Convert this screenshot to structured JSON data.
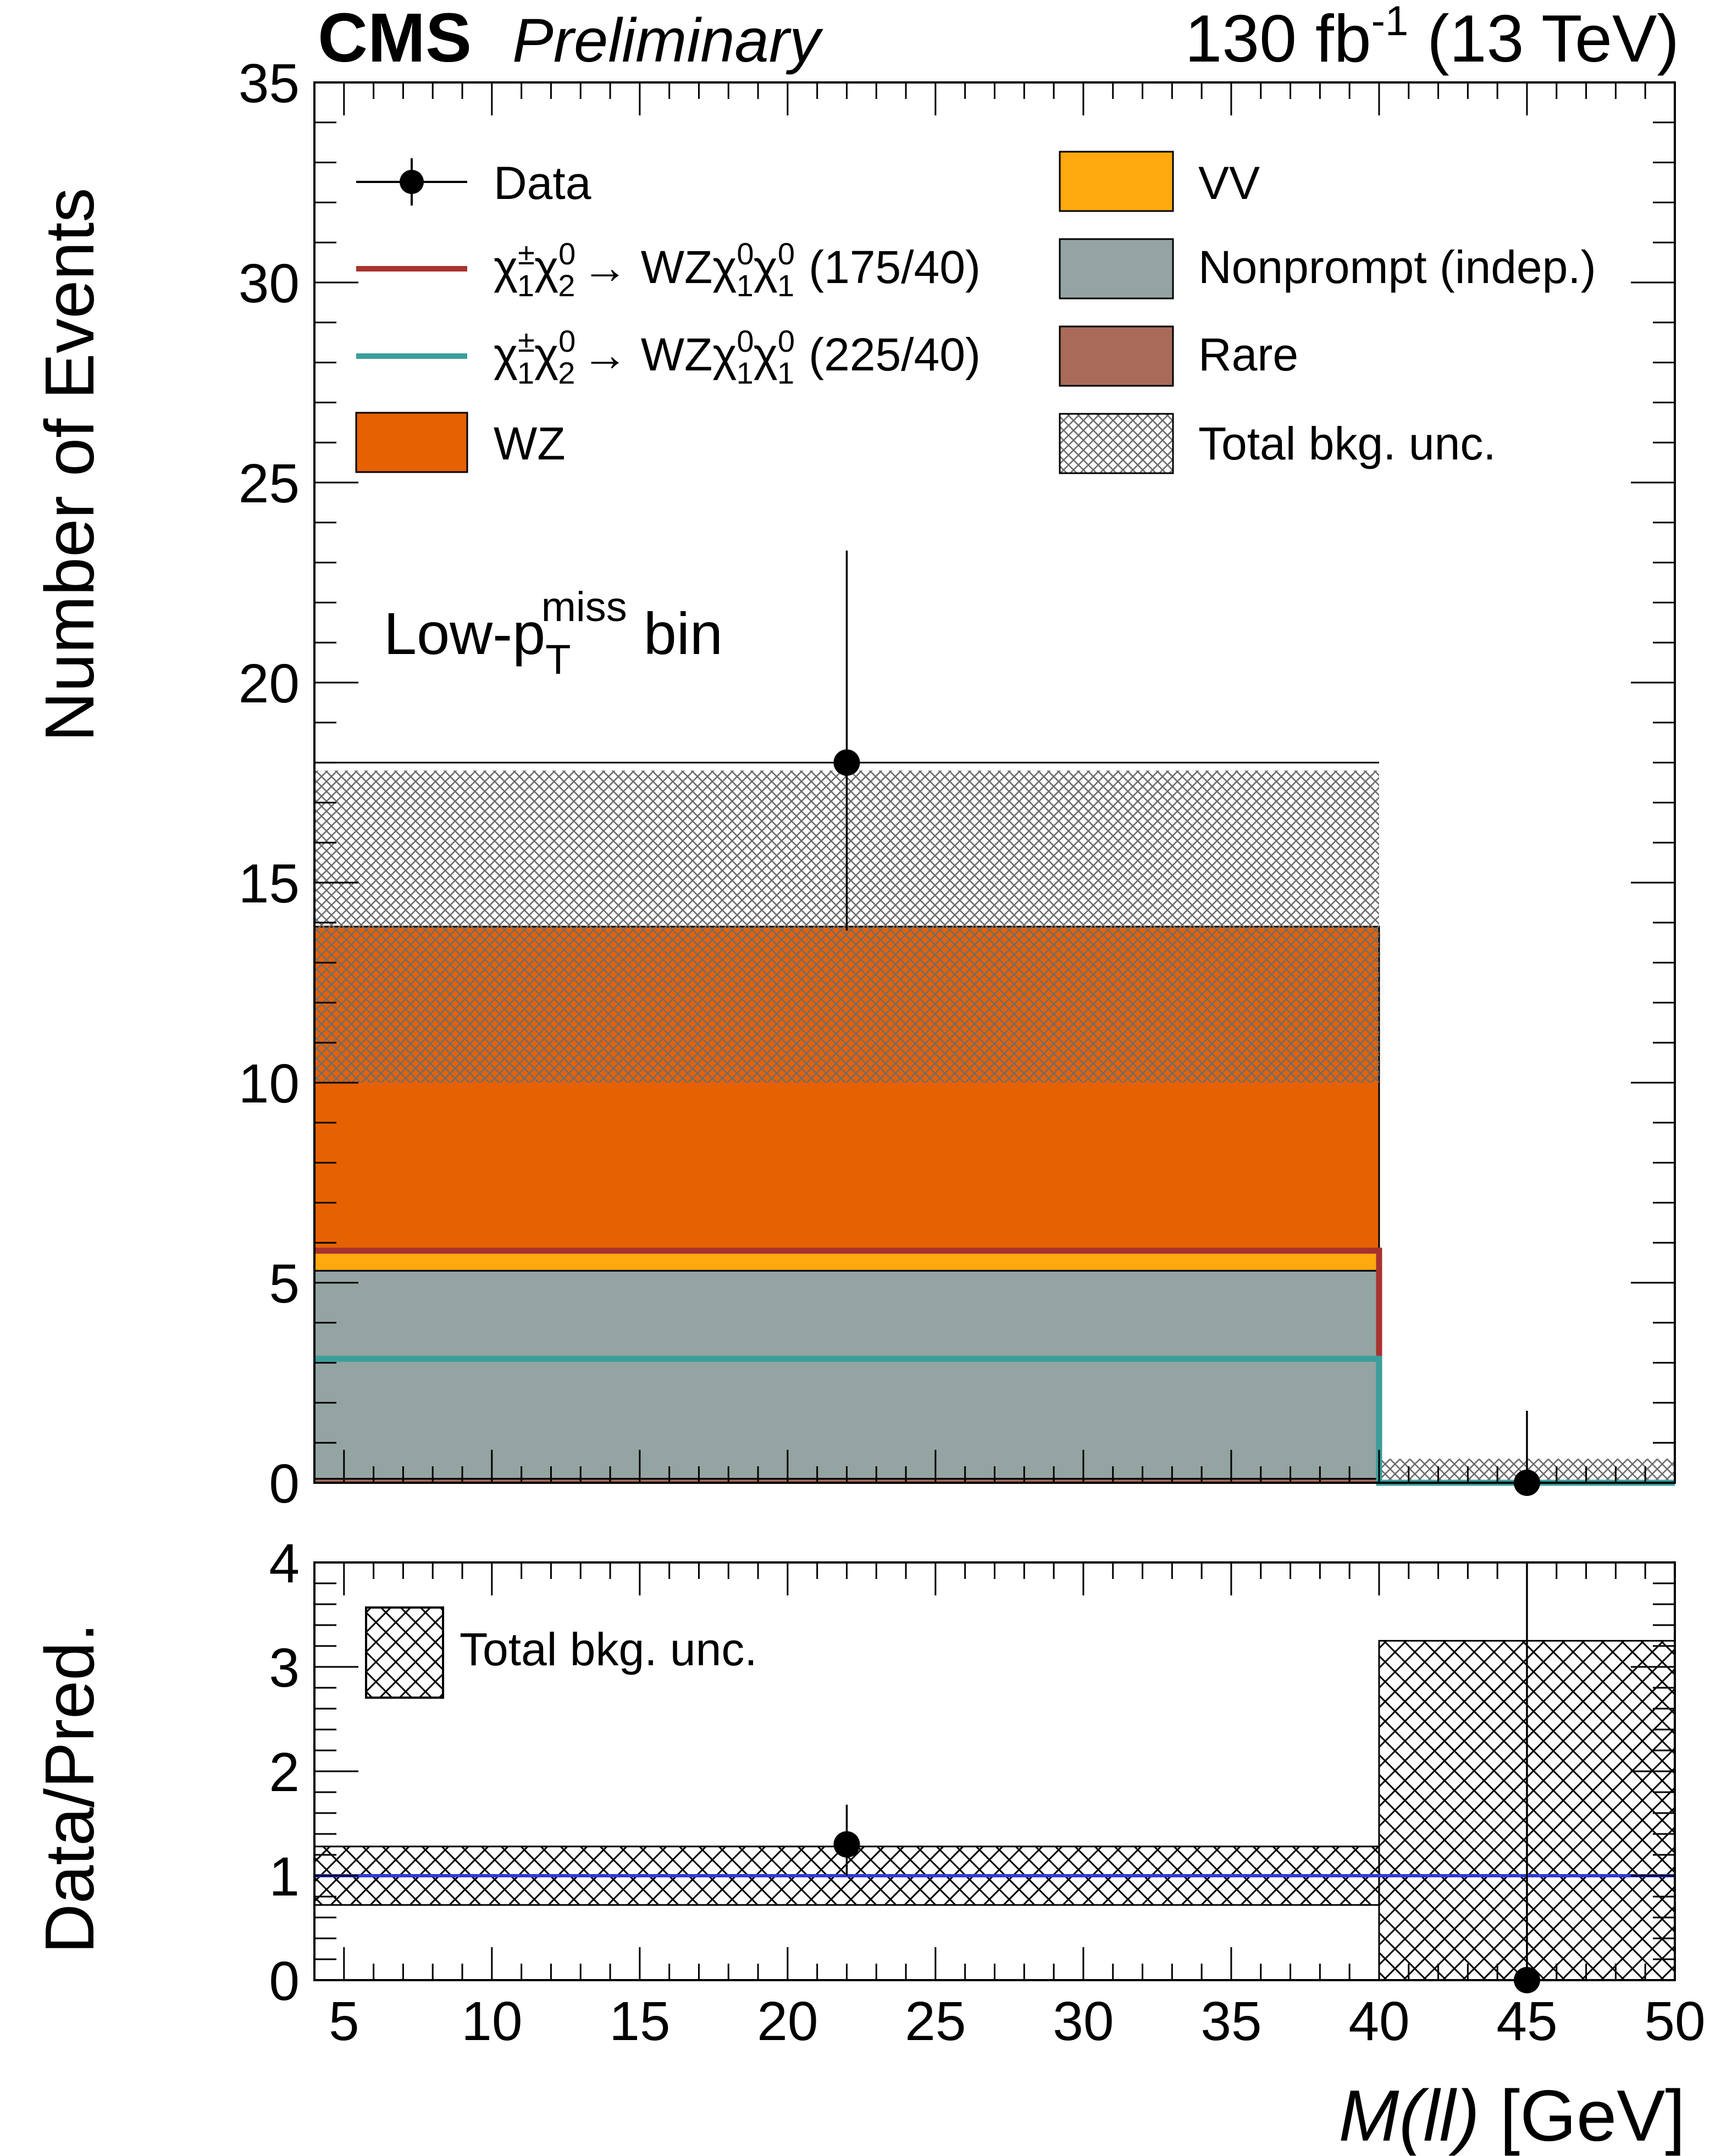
{
  "header": {
    "experiment": "CMS",
    "status": "Preliminary",
    "lumi_text": "130 fb",
    "lumi_exp": "-1",
    "energy_text": " (13 TeV)"
  },
  "region_label": {
    "prefix": "Low-p",
    "sub": "T",
    "sup": "miss",
    "suffix": " bin"
  },
  "colors": {
    "WZ": "#e66101",
    "VV": "#ffa90e",
    "Nonprompt": "#94a4a2",
    "Rare": "#a96b59",
    "signal_175_40": "#a8322e",
    "signal_225_40": "#3a9e9b",
    "data": "#000000",
    "ratio_line": "#2f3ad6"
  },
  "chart_data": [
    {
      "type": "bar",
      "subtype": "stacked-histogram",
      "panel": "main",
      "ylabel": "Number of Events",
      "ylim": [
        0,
        35
      ],
      "xlim": [
        4,
        50
      ],
      "yticks": [
        "0",
        "5",
        "10",
        "15",
        "20",
        "25",
        "30",
        "35"
      ],
      "bin_edges": [
        4,
        40,
        50
      ],
      "stack": [
        {
          "name": "Rare",
          "values": [
            0.1,
            0.0
          ]
        },
        {
          "name": "Nonprompt (indep.)",
          "values": [
            5.2,
            0.0
          ]
        },
        {
          "name": "VV",
          "values": [
            0.5,
            0.0
          ]
        },
        {
          "name": "WZ",
          "values": [
            8.1,
            0.0
          ]
        }
      ],
      "total_bkg": [
        13.9,
        0.0
      ],
      "total_unc_band": [
        [
          10.0,
          17.8
        ],
        [
          0.0,
          0.6
        ]
      ],
      "signals": [
        {
          "name": "chi1pm chi20 -> WZ chi10 chi10 (175/40)",
          "values": [
            5.8,
            0.0
          ]
        },
        {
          "name": "chi1pm chi20 -> WZ chi10 chi10 (225/40)",
          "values": [
            3.1,
            0.0
          ]
        }
      ],
      "data_points": {
        "x": [
          22,
          45
        ],
        "y": [
          18,
          0
        ],
        "err_low": [
          4.2,
          0
        ],
        "err_high": [
          5.3,
          1.8
        ]
      },
      "legend": {
        "data": "Data",
        "sig1_prefix": "χ",
        "sig1_mass": "(175/40)",
        "sig2_mass": "(225/40)",
        "arrow_text": "→ WZ",
        "WZ": "WZ",
        "VV": "VV",
        "Nonprompt": "Nonprompt (indep.)",
        "Rare": "Rare",
        "unc": "Total bkg. unc."
      }
    },
    {
      "type": "scatter",
      "subtype": "ratio",
      "panel": "ratio",
      "ylabel": "Data/Pred.",
      "xlabel_italic": "M(ll)",
      "xlabel_unit": " [GeV]",
      "ylim": [
        0,
        4
      ],
      "xlim": [
        4,
        50
      ],
      "yticks": [
        "0",
        "1",
        "2",
        "3",
        "4"
      ],
      "xticks": [
        "5",
        "10",
        "15",
        "20",
        "25",
        "30",
        "35",
        "40",
        "45",
        "50"
      ],
      "band": [
        [
          0.72,
          1.28
        ],
        [
          0.0,
          3.25
        ]
      ],
      "points": {
        "x": [
          22,
          45
        ],
        "y": [
          1.3,
          0
        ],
        "err_low": [
          0.3,
          0
        ],
        "err_high": [
          0.38,
          4
        ]
      },
      "legend": {
        "unc": "Total bkg. unc."
      }
    }
  ]
}
